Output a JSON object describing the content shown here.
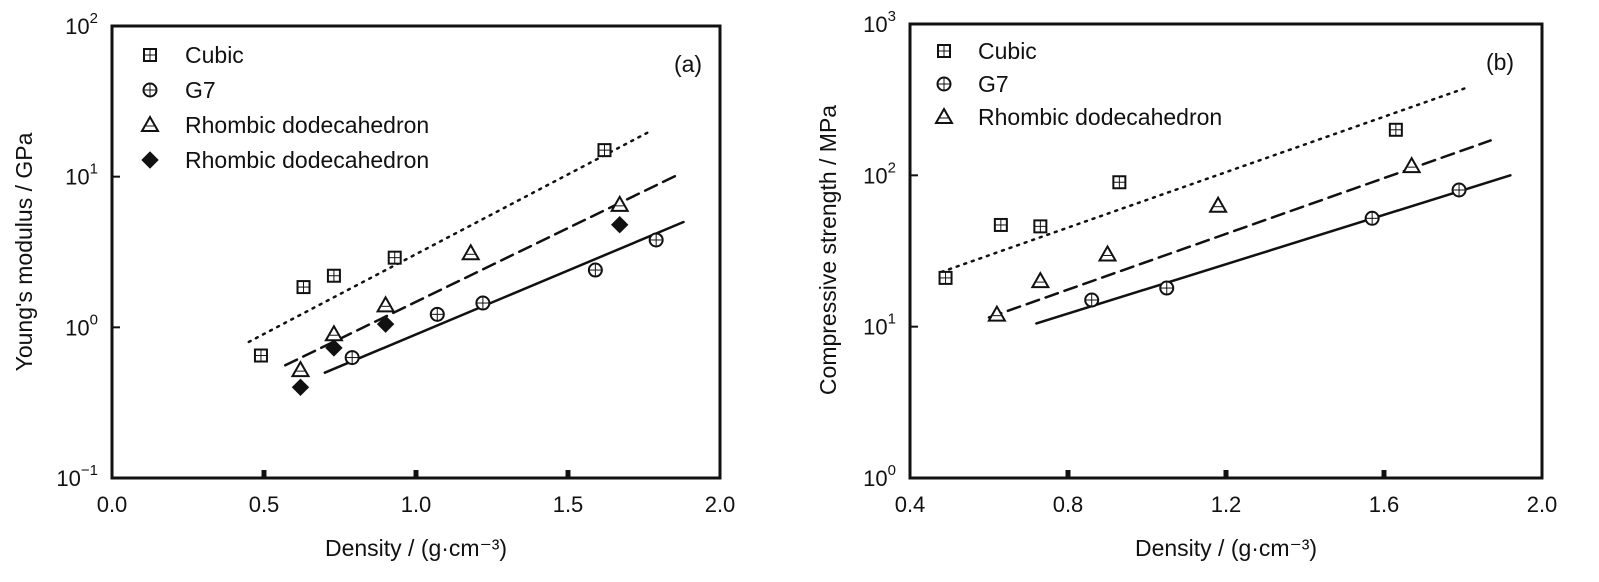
{
  "chart_data": [
    {
      "type": "scatter",
      "panel_label": "(a)",
      "xlabel": "Density / (g·cm⁻³)",
      "ylabel": "Young's modulus / GPa",
      "xlim": [
        0.0,
        2.0
      ],
      "ylim": [
        0.1,
        100
      ],
      "yscale": "log",
      "x_ticks": [
        "0.0",
        "0.5",
        "1.0",
        "1.5",
        "2.0"
      ],
      "y_ticks": [
        {
          "base": "10",
          "exp": "−1"
        },
        {
          "base": "10",
          "exp": "0"
        },
        {
          "base": "10",
          "exp": "1"
        },
        {
          "base": "10",
          "exp": "2"
        }
      ],
      "legend_position": "top-left",
      "grid": false,
      "series": [
        {
          "name": "Cubic",
          "marker": "square-open",
          "line": "dotted",
          "points": [
            [
              0.49,
              0.65
            ],
            [
              0.63,
              1.85
            ],
            [
              0.73,
              2.2
            ],
            [
              0.93,
              2.9
            ],
            [
              1.62,
              15.0
            ]
          ],
          "fit": [
            [
              0.45,
              0.8
            ],
            [
              1.77,
              20.0
            ]
          ]
        },
        {
          "name": "G7",
          "marker": "circle-open",
          "line": "solid",
          "points": [
            [
              0.79,
              0.63
            ],
            [
              1.07,
              1.22
            ],
            [
              1.22,
              1.45
            ],
            [
              1.59,
              2.4
            ],
            [
              1.79,
              3.8
            ]
          ],
          "fit": [
            [
              0.7,
              0.5
            ],
            [
              1.88,
              5.0
            ]
          ]
        },
        {
          "name": "Rhombic dodecahedron",
          "marker": "triangle-open",
          "line": "dashed",
          "points": [
            [
              0.62,
              0.52
            ],
            [
              0.73,
              0.9
            ],
            [
              0.9,
              1.4
            ],
            [
              1.18,
              3.1
            ],
            [
              1.67,
              6.5
            ]
          ],
          "fit": [
            [
              0.57,
              0.56
            ],
            [
              1.87,
              10.5
            ]
          ]
        },
        {
          "name": "Rhombic dodecahedron",
          "marker": "diamond-filled",
          "line": "none",
          "points": [
            [
              0.62,
              0.4
            ],
            [
              0.73,
              0.73
            ],
            [
              0.9,
              1.05
            ],
            [
              1.67,
              4.8
            ]
          ]
        }
      ]
    },
    {
      "type": "scatter",
      "panel_label": "(b)",
      "xlabel": "Density / (g·cm⁻³)",
      "ylabel": "Compressive strength / MPa",
      "xlim": [
        0.4,
        2.0
      ],
      "ylim": [
        1,
        1000
      ],
      "yscale": "log",
      "x_ticks": [
        "0.4",
        "0.8",
        "1.2",
        "1.6",
        "2.0"
      ],
      "y_ticks": [
        {
          "base": "10",
          "exp": "0"
        },
        {
          "base": "10",
          "exp": "1"
        },
        {
          "base": "10",
          "exp": "2"
        },
        {
          "base": "10",
          "exp": "3"
        }
      ],
      "legend_position": "top-left",
      "grid": false,
      "series": [
        {
          "name": "Cubic",
          "marker": "square-open",
          "line": "dotted",
          "points": [
            [
              0.49,
              21
            ],
            [
              0.63,
              47
            ],
            [
              0.73,
              46
            ],
            [
              0.93,
              90
            ],
            [
              1.63,
              200
            ]
          ],
          "fit": [
            [
              0.48,
              23
            ],
            [
              1.81,
              380
            ]
          ]
        },
        {
          "name": "G7",
          "marker": "circle-open",
          "line": "solid",
          "points": [
            [
              0.86,
              15
            ],
            [
              1.05,
              18
            ],
            [
              1.57,
              52
            ],
            [
              1.79,
              80
            ]
          ],
          "fit": [
            [
              0.72,
              10.5
            ],
            [
              1.92,
              100
            ]
          ]
        },
        {
          "name": "Rhombic dodecahedron",
          "marker": "triangle-open",
          "line": "dashed",
          "points": [
            [
              0.62,
              12
            ],
            [
              0.73,
              20
            ],
            [
              0.9,
              30
            ],
            [
              1.18,
              63
            ],
            [
              1.67,
              115
            ]
          ],
          "fit": [
            [
              0.6,
              11.5
            ],
            [
              1.87,
              170
            ]
          ]
        }
      ]
    }
  ]
}
